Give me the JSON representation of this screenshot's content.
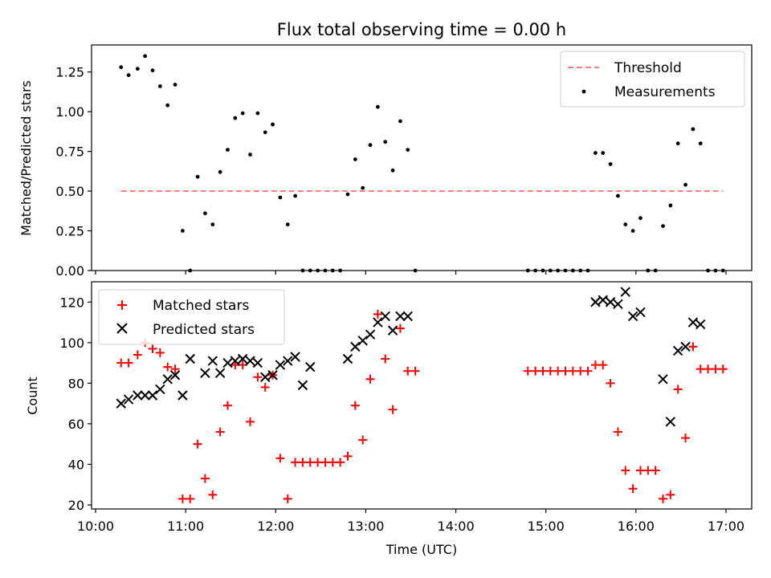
{
  "chart_data": [
    {
      "type": "scatter",
      "title": "Flux total observing time = 0.00 h",
      "ylabel": "Matched/Predicted stars",
      "xlabel": "",
      "xlim": [
        "10:00",
        "17:18"
      ],
      "ylim": [
        0,
        1.42
      ],
      "yticks": [
        0.0,
        0.25,
        0.5,
        0.75,
        1.0,
        1.25
      ],
      "ytick_labels": [
        "0.00",
        "0.25",
        "0.50",
        "0.75",
        "1.00",
        "1.25"
      ],
      "legend_position": "top-right",
      "threshold": {
        "name": "Threshold",
        "color": "#ff7f7f",
        "style": "dashed",
        "y": 0.5,
        "x_range": [
          "10:17",
          "16:58"
        ]
      },
      "series": [
        {
          "name": "Measurements",
          "marker": "dot",
          "color": "#000000",
          "points": [
            [
              "10:17",
              1.28
            ],
            [
              "10:22",
              1.23
            ],
            [
              "10:28",
              1.27
            ],
            [
              "10:33",
              1.35
            ],
            [
              "10:38",
              1.26
            ],
            [
              "10:43",
              1.16
            ],
            [
              "10:48",
              1.04
            ],
            [
              "10:53",
              1.17
            ],
            [
              "10:58",
              0.25
            ],
            [
              "11:03",
              0.0
            ],
            [
              "11:08",
              0.59
            ],
            [
              "11:13",
              0.36
            ],
            [
              "11:18",
              0.29
            ],
            [
              "11:23",
              0.62
            ],
            [
              "11:28",
              0.76
            ],
            [
              "11:33",
              0.96
            ],
            [
              "11:38",
              0.99
            ],
            [
              "11:43",
              0.73
            ],
            [
              "11:48",
              0.99
            ],
            [
              "11:53",
              0.87
            ],
            [
              "11:58",
              0.92
            ],
            [
              "12:03",
              0.46
            ],
            [
              "12:08",
              0.29
            ],
            [
              "12:13",
              0.47
            ],
            [
              "12:18",
              0.0
            ],
            [
              "12:23",
              0.0
            ],
            [
              "12:28",
              0.0
            ],
            [
              "12:33",
              0.0
            ],
            [
              "12:38",
              0.0
            ],
            [
              "12:43",
              0.0
            ],
            [
              "12:48",
              0.48
            ],
            [
              "12:53",
              0.7
            ],
            [
              "12:58",
              0.52
            ],
            [
              "13:03",
              0.79
            ],
            [
              "13:08",
              1.03
            ],
            [
              "13:13",
              0.81
            ],
            [
              "13:18",
              0.63
            ],
            [
              "13:23",
              0.94
            ],
            [
              "13:28",
              0.76
            ],
            [
              "13:33",
              0.0
            ],
            [
              "14:48",
              0.0
            ],
            [
              "14:53",
              0.0
            ],
            [
              "14:58",
              0.0
            ],
            [
              "15:03",
              0.0
            ],
            [
              "15:08",
              0.0
            ],
            [
              "15:13",
              0.0
            ],
            [
              "15:18",
              0.0
            ],
            [
              "15:23",
              0.0
            ],
            [
              "15:28",
              0.0
            ],
            [
              "15:33",
              0.74
            ],
            [
              "15:38",
              0.74
            ],
            [
              "15:43",
              0.67
            ],
            [
              "15:48",
              0.47
            ],
            [
              "15:53",
              0.29
            ],
            [
              "15:58",
              0.25
            ],
            [
              "16:03",
              0.33
            ],
            [
              "16:08",
              0.0
            ],
            [
              "16:13",
              0.0
            ],
            [
              "16:18",
              0.28
            ],
            [
              "16:23",
              0.41
            ],
            [
              "16:28",
              0.8
            ],
            [
              "16:33",
              0.54
            ],
            [
              "16:38",
              0.89
            ],
            [
              "16:43",
              0.8
            ],
            [
              "16:48",
              0.0
            ],
            [
              "16:53",
              0.0
            ],
            [
              "16:58",
              0.0
            ]
          ]
        }
      ]
    },
    {
      "type": "scatter",
      "title": "",
      "ylabel": "Count",
      "xlabel": "Time (UTC)",
      "xlim": [
        "10:00",
        "17:18"
      ],
      "ylim": [
        18,
        130
      ],
      "xticks": [
        "10:00",
        "11:00",
        "12:00",
        "13:00",
        "14:00",
        "15:00",
        "16:00",
        "17:00"
      ],
      "yticks": [
        20,
        40,
        60,
        80,
        100,
        120
      ],
      "ytick_labels": [
        "20",
        "40",
        "60",
        "80",
        "100",
        "120"
      ],
      "legend_position": "top-left",
      "series": [
        {
          "name": "Matched stars",
          "marker": "plus",
          "color": "#ff0000",
          "points": [
            [
              "10:17",
              90
            ],
            [
              "10:22",
              90
            ],
            [
              "10:28",
              94
            ],
            [
              "10:33",
              100
            ],
            [
              "10:38",
              97
            ],
            [
              "10:43",
              95
            ],
            [
              "10:48",
              88
            ],
            [
              "10:53",
              87
            ],
            [
              "10:58",
              23
            ],
            [
              "11:03",
              23
            ],
            [
              "11:08",
              50
            ],
            [
              "11:13",
              33
            ],
            [
              "11:18",
              25
            ],
            [
              "11:23",
              56
            ],
            [
              "11:28",
              69
            ],
            [
              "11:33",
              89
            ],
            [
              "11:38",
              89
            ],
            [
              "11:43",
              61
            ],
            [
              "11:48",
              83
            ],
            [
              "11:53",
              78
            ],
            [
              "11:58",
              84
            ],
            [
              "12:03",
              43
            ],
            [
              "12:08",
              23
            ],
            [
              "12:13",
              41
            ],
            [
              "12:18",
              41
            ],
            [
              "12:23",
              41
            ],
            [
              "12:28",
              41
            ],
            [
              "12:33",
              41
            ],
            [
              "12:38",
              41
            ],
            [
              "12:43",
              41
            ],
            [
              "12:48",
              44
            ],
            [
              "12:53",
              69
            ],
            [
              "12:58",
              52
            ],
            [
              "13:03",
              82
            ],
            [
              "13:08",
              114
            ],
            [
              "13:13",
              92
            ],
            [
              "13:18",
              67
            ],
            [
              "13:23",
              107
            ],
            [
              "13:28",
              86
            ],
            [
              "13:33",
              86
            ],
            [
              "14:48",
              86
            ],
            [
              "14:53",
              86
            ],
            [
              "14:58",
              86
            ],
            [
              "15:03",
              86
            ],
            [
              "15:08",
              86
            ],
            [
              "15:13",
              86
            ],
            [
              "15:18",
              86
            ],
            [
              "15:23",
              86
            ],
            [
              "15:28",
              86
            ],
            [
              "15:33",
              89
            ],
            [
              "15:38",
              89
            ],
            [
              "15:43",
              80
            ],
            [
              "15:48",
              56
            ],
            [
              "15:53",
              37
            ],
            [
              "15:58",
              28
            ],
            [
              "16:03",
              37
            ],
            [
              "16:08",
              37
            ],
            [
              "16:13",
              37
            ],
            [
              "16:18",
              23
            ],
            [
              "16:23",
              25
            ],
            [
              "16:28",
              77
            ],
            [
              "16:33",
              53
            ],
            [
              "16:38",
              98
            ],
            [
              "16:43",
              87
            ],
            [
              "16:48",
              87
            ],
            [
              "16:53",
              87
            ],
            [
              "16:58",
              87
            ]
          ]
        },
        {
          "name": "Predicted stars",
          "marker": "x",
          "color": "#000000",
          "points": [
            [
              "10:17",
              70
            ],
            [
              "10:22",
              72
            ],
            [
              "10:28",
              74
            ],
            [
              "10:33",
              74
            ],
            [
              "10:38",
              74
            ],
            [
              "10:43",
              77
            ],
            [
              "10:48",
              82
            ],
            [
              "10:53",
              84
            ],
            [
              "10:58",
              74
            ],
            [
              "11:03",
              92
            ],
            [
              "11:13",
              85
            ],
            [
              "11:18",
              91
            ],
            [
              "11:23",
              85
            ],
            [
              "11:28",
              90
            ],
            [
              "11:33",
              91
            ],
            [
              "11:38",
              92
            ],
            [
              "11:43",
              91
            ],
            [
              "11:48",
              90
            ],
            [
              "11:53",
              83
            ],
            [
              "11:58",
              84
            ],
            [
              "12:03",
              89
            ],
            [
              "12:08",
              91
            ],
            [
              "12:13",
              93
            ],
            [
              "12:18",
              79
            ],
            [
              "12:23",
              88
            ],
            [
              "12:48",
              92
            ],
            [
              "12:53",
              98
            ],
            [
              "12:58",
              101
            ],
            [
              "13:03",
              104
            ],
            [
              "13:08",
              110
            ],
            [
              "13:13",
              113
            ],
            [
              "13:18",
              106
            ],
            [
              "13:23",
              113
            ],
            [
              "13:28",
              113
            ],
            [
              "15:33",
              120
            ],
            [
              "15:38",
              121
            ],
            [
              "15:43",
              120
            ],
            [
              "15:48",
              119
            ],
            [
              "15:53",
              125
            ],
            [
              "15:58",
              113
            ],
            [
              "16:03",
              115
            ],
            [
              "16:18",
              82
            ],
            [
              "16:23",
              61
            ],
            [
              "16:28",
              96
            ],
            [
              "16:33",
              98
            ],
            [
              "16:38",
              110
            ],
            [
              "16:43",
              109
            ]
          ]
        }
      ]
    }
  ]
}
